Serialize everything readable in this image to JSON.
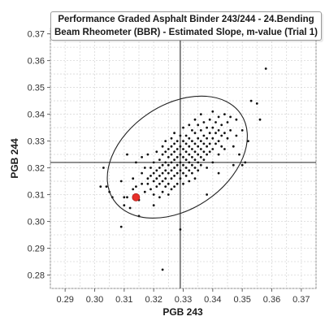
{
  "chart_data": {
    "type": "scatter",
    "title": "Performance Graded Asphalt Binder 243/244 - 24.Bending\nBeam Rheometer (BBR) - Estimated Slope, m-value (Trial 1)",
    "xlabel": "PGB 243",
    "ylabel": "PGB 244",
    "xlim": [
      0.285,
      0.375
    ],
    "ylim": [
      0.275,
      0.372
    ],
    "xticks": [
      "0.29",
      "0.30",
      "0.31",
      "0.32",
      "0.33",
      "0.34",
      "0.35",
      "0.36",
      "0.37"
    ],
    "yticks": [
      "0.28",
      "0.29",
      "0.30",
      "0.31",
      "0.32",
      "0.33",
      "0.34",
      "0.35",
      "0.36",
      "0.37"
    ],
    "grid": true,
    "reference_lines": {
      "x": 0.329,
      "y": 0.322
    },
    "highlight_point": {
      "x": 0.314,
      "y": 0.309,
      "color": "#e8302a"
    },
    "ellipse": {
      "center": [
        0.328,
        0.324
      ],
      "semi_axes_data": [
        0.026,
        0.0065
      ],
      "angle_deg": 34
    },
    "point_color": "#111111",
    "series": [
      {
        "points": [
          [
            0.302,
            0.313
          ],
          [
            0.303,
            0.32
          ],
          [
            0.304,
            0.313
          ],
          [
            0.305,
            0.311
          ],
          [
            0.306,
            0.309
          ],
          [
            0.309,
            0.298
          ],
          [
            0.31,
            0.306
          ],
          [
            0.31,
            0.309
          ],
          [
            0.311,
            0.309
          ],
          [
            0.312,
            0.305
          ],
          [
            0.313,
            0.316
          ],
          [
            0.313,
            0.312
          ],
          [
            0.314,
            0.313
          ],
          [
            0.315,
            0.308
          ],
          [
            0.315,
            0.302
          ],
          [
            0.316,
            0.318
          ],
          [
            0.316,
            0.314
          ],
          [
            0.317,
            0.32
          ],
          [
            0.317,
            0.311
          ],
          [
            0.318,
            0.325
          ],
          [
            0.318,
            0.316
          ],
          [
            0.318,
            0.314
          ],
          [
            0.319,
            0.32
          ],
          [
            0.319,
            0.317
          ],
          [
            0.319,
            0.312
          ],
          [
            0.32,
            0.322
          ],
          [
            0.32,
            0.318
          ],
          [
            0.32,
            0.315
          ],
          [
            0.32,
            0.31
          ],
          [
            0.32,
            0.306
          ],
          [
            0.321,
            0.326
          ],
          [
            0.321,
            0.319
          ],
          [
            0.321,
            0.316
          ],
          [
            0.321,
            0.313
          ],
          [
            0.322,
            0.323
          ],
          [
            0.322,
            0.32
          ],
          [
            0.322,
            0.317
          ],
          [
            0.322,
            0.314
          ],
          [
            0.322,
            0.309
          ],
          [
            0.323,
            0.328
          ],
          [
            0.323,
            0.325
          ],
          [
            0.323,
            0.321
          ],
          [
            0.323,
            0.318
          ],
          [
            0.323,
            0.315
          ],
          [
            0.323,
            0.311
          ],
          [
            0.323,
            0.282
          ],
          [
            0.324,
            0.33
          ],
          [
            0.324,
            0.326
          ],
          [
            0.324,
            0.322
          ],
          [
            0.324,
            0.319
          ],
          [
            0.324,
            0.316
          ],
          [
            0.324,
            0.313
          ],
          [
            0.325,
            0.327
          ],
          [
            0.325,
            0.324
          ],
          [
            0.325,
            0.321
          ],
          [
            0.325,
            0.318
          ],
          [
            0.325,
            0.314
          ],
          [
            0.325,
            0.31
          ],
          [
            0.326,
            0.331
          ],
          [
            0.326,
            0.328
          ],
          [
            0.326,
            0.325
          ],
          [
            0.326,
            0.322
          ],
          [
            0.326,
            0.319
          ],
          [
            0.326,
            0.316
          ],
          [
            0.326,
            0.312
          ],
          [
            0.327,
            0.333
          ],
          [
            0.327,
            0.329
          ],
          [
            0.327,
            0.326
          ],
          [
            0.327,
            0.323
          ],
          [
            0.327,
            0.32
          ],
          [
            0.327,
            0.317
          ],
          [
            0.327,
            0.313
          ],
          [
            0.328,
            0.33
          ],
          [
            0.328,
            0.327
          ],
          [
            0.328,
            0.324
          ],
          [
            0.328,
            0.321
          ],
          [
            0.328,
            0.318
          ],
          [
            0.328,
            0.314
          ],
          [
            0.329,
            0.332
          ],
          [
            0.329,
            0.328
          ],
          [
            0.329,
            0.325
          ],
          [
            0.329,
            0.322
          ],
          [
            0.329,
            0.319
          ],
          [
            0.329,
            0.316
          ],
          [
            0.329,
            0.297
          ],
          [
            0.33,
            0.335
          ],
          [
            0.33,
            0.33
          ],
          [
            0.33,
            0.327
          ],
          [
            0.33,
            0.324
          ],
          [
            0.33,
            0.321
          ],
          [
            0.33,
            0.318
          ],
          [
            0.33,
            0.314
          ],
          [
            0.331,
            0.332
          ],
          [
            0.331,
            0.329
          ],
          [
            0.331,
            0.326
          ],
          [
            0.331,
            0.323
          ],
          [
            0.331,
            0.32
          ],
          [
            0.331,
            0.317
          ],
          [
            0.332,
            0.336
          ],
          [
            0.332,
            0.331
          ],
          [
            0.332,
            0.328
          ],
          [
            0.332,
            0.325
          ],
          [
            0.332,
            0.322
          ],
          [
            0.332,
            0.319
          ],
          [
            0.332,
            0.315
          ],
          [
            0.333,
            0.334
          ],
          [
            0.333,
            0.33
          ],
          [
            0.333,
            0.327
          ],
          [
            0.333,
            0.324
          ],
          [
            0.333,
            0.321
          ],
          [
            0.333,
            0.318
          ],
          [
            0.334,
            0.338
          ],
          [
            0.334,
            0.333
          ],
          [
            0.334,
            0.329
          ],
          [
            0.334,
            0.326
          ],
          [
            0.334,
            0.323
          ],
          [
            0.334,
            0.32
          ],
          [
            0.334,
            0.316
          ],
          [
            0.335,
            0.336
          ],
          [
            0.335,
            0.331
          ],
          [
            0.335,
            0.328
          ],
          [
            0.335,
            0.325
          ],
          [
            0.335,
            0.322
          ],
          [
            0.335,
            0.319
          ],
          [
            0.336,
            0.34
          ],
          [
            0.336,
            0.334
          ],
          [
            0.336,
            0.33
          ],
          [
            0.336,
            0.327
          ],
          [
            0.336,
            0.324
          ],
          [
            0.336,
            0.321
          ],
          [
            0.337,
            0.337
          ],
          [
            0.337,
            0.332
          ],
          [
            0.337,
            0.329
          ],
          [
            0.337,
            0.326
          ],
          [
            0.337,
            0.323
          ],
          [
            0.338,
            0.335
          ],
          [
            0.338,
            0.331
          ],
          [
            0.338,
            0.328
          ],
          [
            0.338,
            0.325
          ],
          [
            0.338,
            0.32
          ],
          [
            0.339,
            0.338
          ],
          [
            0.339,
            0.333
          ],
          [
            0.339,
            0.329
          ],
          [
            0.339,
            0.326
          ],
          [
            0.34,
            0.341
          ],
          [
            0.34,
            0.335
          ],
          [
            0.34,
            0.331
          ],
          [
            0.34,
            0.327
          ],
          [
            0.34,
            0.322
          ],
          [
            0.341,
            0.337
          ],
          [
            0.341,
            0.333
          ],
          [
            0.341,
            0.329
          ],
          [
            0.342,
            0.339
          ],
          [
            0.342,
            0.334
          ],
          [
            0.342,
            0.33
          ],
          [
            0.342,
            0.325
          ],
          [
            0.343,
            0.336
          ],
          [
            0.343,
            0.332
          ],
          [
            0.343,
            0.328
          ],
          [
            0.344,
            0.34
          ],
          [
            0.344,
            0.333
          ],
          [
            0.344,
            0.327
          ],
          [
            0.345,
            0.337
          ],
          [
            0.345,
            0.331
          ],
          [
            0.346,
            0.339
          ],
          [
            0.346,
            0.334
          ],
          [
            0.347,
            0.328
          ],
          [
            0.347,
            0.321
          ],
          [
            0.348,
            0.338
          ],
          [
            0.348,
            0.332
          ],
          [
            0.349,
            0.325
          ],
          [
            0.35,
            0.334
          ],
          [
            0.35,
            0.321
          ],
          [
            0.351,
            0.322
          ],
          [
            0.352,
            0.33
          ],
          [
            0.353,
            0.345
          ],
          [
            0.355,
            0.344
          ],
          [
            0.356,
            0.338
          ],
          [
            0.358,
            0.357
          ],
          [
            0.311,
            0.325
          ],
          [
            0.314,
            0.322
          ],
          [
            0.316,
            0.324
          ],
          [
            0.309,
            0.315
          ],
          [
            0.338,
            0.31
          ],
          [
            0.342,
            0.318
          ]
        ]
      }
    ]
  }
}
